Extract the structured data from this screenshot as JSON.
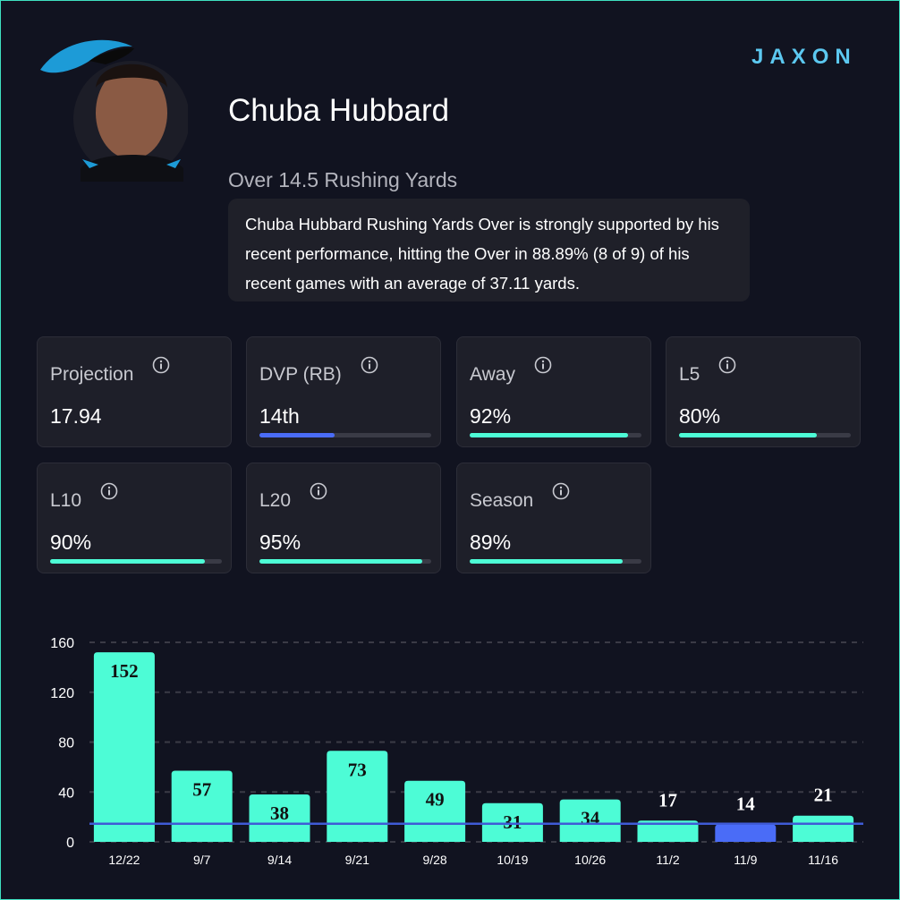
{
  "header": {
    "logo": "JAXON"
  },
  "player": {
    "name": "Chuba Hubbard",
    "prop": "Over 14.5 Rushing Yards",
    "summary": "Chuba Hubbard Rushing Yards Over is strongly supported by his recent performance, hitting the Over in 88.89% (8 of 9) of his recent games with an average of 37.11 yards."
  },
  "stats": [
    {
      "label": "Projection",
      "text": "17.94"
    },
    {
      "label": "DVP (RB)",
      "text": "14th",
      "bar": 44,
      "bar_color": "#4a6cf7"
    },
    {
      "label": "Away",
      "text": "92%",
      "bar": 92,
      "bar_color": "#4dfcd6"
    },
    {
      "label": "L5",
      "text": "80%",
      "bar": 80,
      "bar_color": "#4dfcd6"
    },
    {
      "label": "L10",
      "text": "90%",
      "bar": 90,
      "bar_color": "#4dfcd6"
    },
    {
      "label": "L20",
      "text": "95%",
      "bar": 95,
      "bar_color": "#4dfcd6"
    },
    {
      "label": "Season",
      "text": "89%",
      "bar": 89,
      "bar_color": "#4dfcd6"
    }
  ],
  "chart_data": {
    "type": "bar",
    "categories": [
      "12/22",
      "9/7",
      "9/14",
      "9/21",
      "9/28",
      "10/19",
      "10/26",
      "11/2",
      "11/9",
      "11/16"
    ],
    "values": [
      152,
      57,
      38,
      73,
      49,
      31,
      34,
      17,
      14,
      21
    ],
    "colors": [
      "#4dfcd6",
      "#4dfcd6",
      "#4dfcd6",
      "#4dfcd6",
      "#4dfcd6",
      "#4dfcd6",
      "#4dfcd6",
      "#4dfcd6",
      "#4a6cf7",
      "#4dfcd6"
    ],
    "threshold": 14.5,
    "threshold_color": "#3f5bd6",
    "ylim": [
      0,
      160
    ],
    "yticks": [
      0,
      40,
      80,
      120,
      160
    ],
    "grid": true
  }
}
